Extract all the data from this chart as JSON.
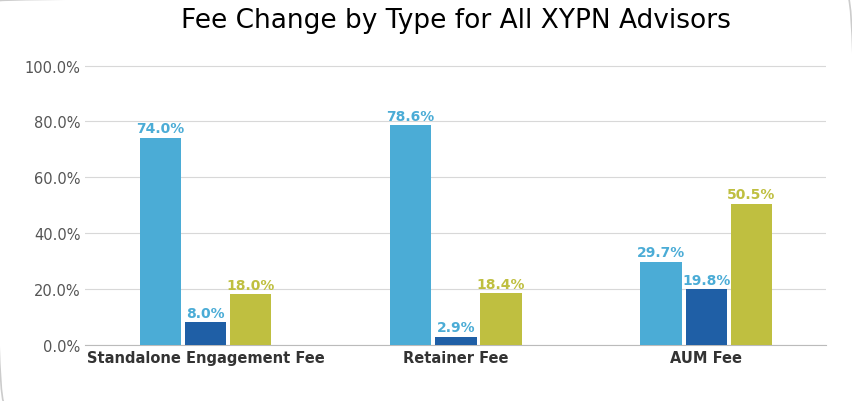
{
  "title": "Fee Change by Type for All XYPN Advisors",
  "categories": [
    "Standalone Engagement Fee",
    "Retainer Fee",
    "AUM Fee"
  ],
  "series": {
    "Increase": [
      74.0,
      78.6,
      29.7
    ],
    "Decrease": [
      8.0,
      2.9,
      19.8
    ],
    "No Change": [
      18.0,
      18.4,
      50.5
    ]
  },
  "colors": {
    "Increase": "#4BACD6",
    "Decrease": "#1F5FA6",
    "No Change": "#BFBF40"
  },
  "label_colors": {
    "Increase": "#4BACD6",
    "Decrease": "#4BACD6",
    "No Change": "#BFBF40"
  },
  "ylim": [
    0,
    108
  ],
  "yticks": [
    0,
    20,
    40,
    60,
    80,
    100
  ],
  "ytick_labels": [
    "0.0%",
    "20.0%",
    "40.0%",
    "60.0%",
    "80.0%",
    "100.0%"
  ],
  "bar_width": 0.18,
  "title_fontsize": 19,
  "tick_fontsize": 10.5,
  "label_fontsize": 10,
  "legend_fontsize": 10.5,
  "background_color": "#FFFFFF",
  "outer_bg": "#F0F0F0",
  "grid_color": "#D8D8D8",
  "border_color": "#CCCCCC"
}
